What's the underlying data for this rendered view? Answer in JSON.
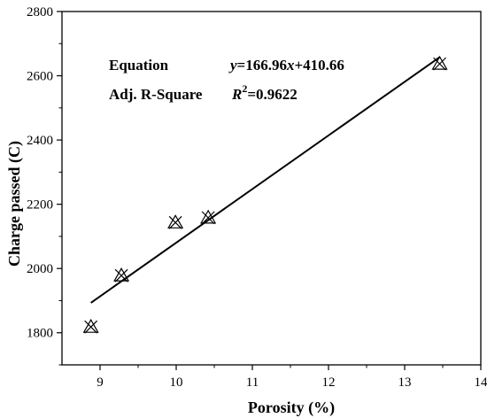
{
  "chart_data": {
    "type": "scatter",
    "title": "",
    "xlabel": "Porosity (%)",
    "ylabel": "Charge passed (C)",
    "xlim": [
      8.5,
      14
    ],
    "ylim": [
      1700,
      2800
    ],
    "xticks": [
      9,
      10,
      11,
      12,
      13,
      14
    ],
    "yticks": [
      1800,
      2000,
      2200,
      2400,
      2600,
      2800
    ],
    "grid": false,
    "legend": "none",
    "series": [
      {
        "marker": "x-triangle",
        "color": "#000000",
        "points": [
          {
            "x": 8.88,
            "y": 1818
          },
          {
            "x": 9.28,
            "y": 1978
          },
          {
            "x": 9.99,
            "y": 2143
          },
          {
            "x": 10.42,
            "y": 2158
          },
          {
            "x": 13.46,
            "y": 2637
          }
        ]
      }
    ],
    "fit_line": {
      "slope": 166.96,
      "intercept": 410.66,
      "x_range": [
        8.88,
        13.46
      ]
    },
    "annotation": {
      "label1": "Equation",
      "eq_y": "y",
      "eq_mid": "=166.96",
      "eq_x": "x",
      "eq_end": "+410.66",
      "label2": "Adj. R-Square",
      "r_sym": "R",
      "r_sup": "2",
      "r_val": "=0.9622"
    }
  }
}
